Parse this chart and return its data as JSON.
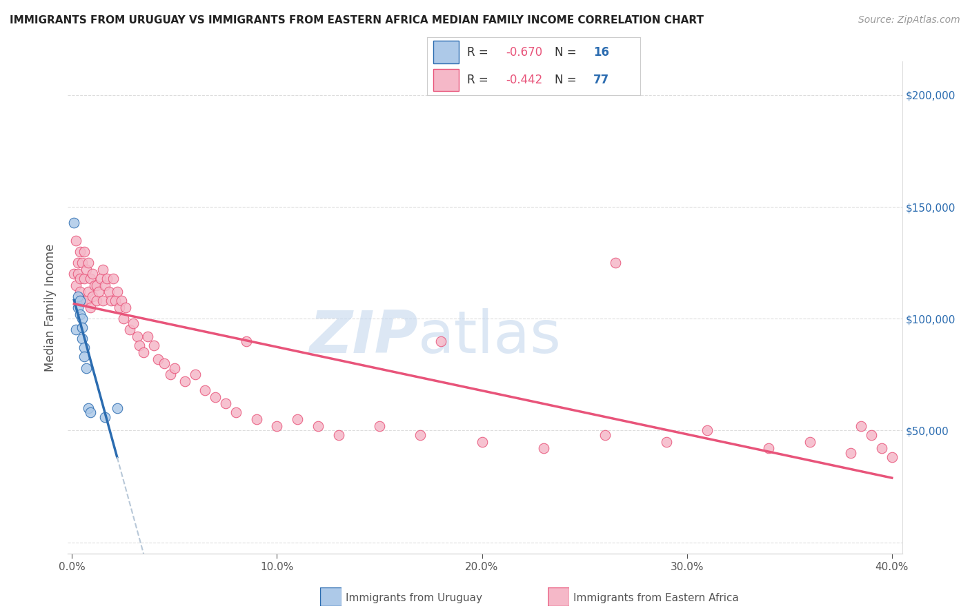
{
  "title": "IMMIGRANTS FROM URUGUAY VS IMMIGRANTS FROM EASTERN AFRICA MEDIAN FAMILY INCOME CORRELATION CHART",
  "source": "Source: ZipAtlas.com",
  "ylabel": "Median Family Income",
  "r_uruguay": -0.67,
  "n_uruguay": 16,
  "r_eastern_africa": -0.442,
  "n_eastern_africa": 77,
  "color_uruguay": "#adc9e8",
  "color_eastern_africa": "#f5b8c8",
  "line_color_uruguay": "#2b6cb0",
  "line_color_eastern_africa": "#e8547a",
  "line_color_dashed": "#b8c8d8",
  "watermark_zip": "ZIP",
  "watermark_atlas": "atlas",
  "watermark_color_zip": "#c5d8ee",
  "watermark_color_atlas": "#c5d8ee",
  "background_color": "#ffffff",
  "ylim": [
    -5000,
    215000
  ],
  "xlim": [
    -0.002,
    0.405
  ],
  "yticks": [
    0,
    50000,
    100000,
    150000,
    200000
  ],
  "xticks": [
    0.0,
    0.1,
    0.2,
    0.3,
    0.4
  ],
  "uruguay_x": [
    0.001,
    0.002,
    0.003,
    0.003,
    0.004,
    0.004,
    0.005,
    0.005,
    0.005,
    0.006,
    0.006,
    0.007,
    0.008,
    0.009,
    0.016,
    0.022
  ],
  "uruguay_y": [
    143000,
    95000,
    110000,
    105000,
    108000,
    102000,
    100000,
    96000,
    91000,
    87000,
    83000,
    78000,
    60000,
    58000,
    56000,
    60000
  ],
  "eastern_africa_x": [
    0.001,
    0.002,
    0.002,
    0.003,
    0.003,
    0.004,
    0.004,
    0.004,
    0.005,
    0.005,
    0.006,
    0.006,
    0.007,
    0.007,
    0.008,
    0.008,
    0.009,
    0.009,
    0.01,
    0.01,
    0.011,
    0.012,
    0.012,
    0.013,
    0.014,
    0.015,
    0.015,
    0.016,
    0.017,
    0.018,
    0.019,
    0.02,
    0.021,
    0.022,
    0.023,
    0.024,
    0.025,
    0.026,
    0.028,
    0.03,
    0.032,
    0.033,
    0.035,
    0.037,
    0.04,
    0.042,
    0.045,
    0.048,
    0.05,
    0.055,
    0.06,
    0.065,
    0.07,
    0.075,
    0.08,
    0.09,
    0.1,
    0.11,
    0.12,
    0.13,
    0.15,
    0.17,
    0.2,
    0.23,
    0.26,
    0.29,
    0.31,
    0.34,
    0.36,
    0.38,
    0.385,
    0.39,
    0.395,
    0.4,
    0.265,
    0.18,
    0.085
  ],
  "eastern_africa_y": [
    120000,
    135000,
    115000,
    125000,
    120000,
    130000,
    118000,
    112000,
    125000,
    108000,
    130000,
    118000,
    122000,
    108000,
    125000,
    112000,
    118000,
    105000,
    110000,
    120000,
    115000,
    108000,
    115000,
    112000,
    118000,
    122000,
    108000,
    115000,
    118000,
    112000,
    108000,
    118000,
    108000,
    112000,
    105000,
    108000,
    100000,
    105000,
    95000,
    98000,
    92000,
    88000,
    85000,
    92000,
    88000,
    82000,
    80000,
    75000,
    78000,
    72000,
    75000,
    68000,
    65000,
    62000,
    58000,
    55000,
    52000,
    55000,
    52000,
    48000,
    52000,
    48000,
    45000,
    42000,
    48000,
    45000,
    50000,
    42000,
    45000,
    40000,
    52000,
    48000,
    42000,
    38000,
    125000,
    90000,
    90000
  ]
}
